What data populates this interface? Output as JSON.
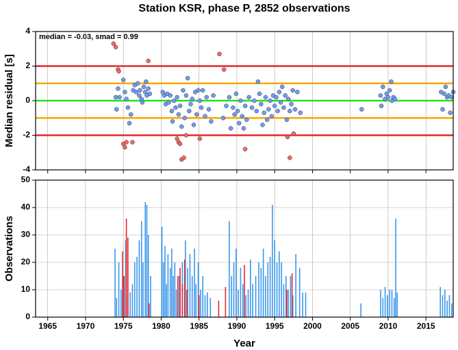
{
  "chart_data": [
    {
      "type": "scatter",
      "title": "Station KSR, phase P, 2852 observations",
      "ylabel": "Median residual [s]",
      "annotation": "median = -0.03, smad = 0.99",
      "xlim": [
        1963.4,
        2018.6
      ],
      "ylim": [
        -4,
        4
      ],
      "yticks": [
        -4,
        -2,
        0,
        2,
        4
      ],
      "grid": true,
      "hlines": [
        {
          "value": 2,
          "color": "#e8262a"
        },
        {
          "value": -2,
          "color": "#e8262a"
        },
        {
          "value": 1,
          "color": "#ffa500"
        },
        {
          "value": -1,
          "color": "#ffa500"
        },
        {
          "value": 0,
          "color": "#22e022"
        }
      ],
      "series": [
        {
          "color": "#6f9cf0",
          "x": [
            1974.0,
            1974.1,
            1974.3,
            1974.5,
            1975.0,
            1975.2,
            1975.4,
            1975.6,
            1975.8,
            1976.0,
            1976.3,
            1976.5,
            1976.7,
            1976.9,
            1977.1,
            1977.2,
            1977.4,
            1977.5,
            1977.7,
            1977.9,
            1978.0,
            1978.1,
            1978.3,
            1978.5,
            1980.2,
            1980.4,
            1980.6,
            1980.8,
            1981.0,
            1981.2,
            1981.4,
            1981.5,
            1981.7,
            1981.9,
            1982.1,
            1982.3,
            1982.5,
            1982.7,
            1982.9,
            1983.1,
            1983.3,
            1983.5,
            1983.7,
            1983.9,
            1984.1,
            1984.3,
            1984.5,
            1984.7,
            1984.9,
            1985.1,
            1985.3,
            1985.5,
            1985.8,
            1986.0,
            1986.3,
            1986.6,
            1986.9,
            1988.2,
            1988.6,
            1989.0,
            1989.2,
            1989.5,
            1989.7,
            1989.9,
            1990.1,
            1990.3,
            1990.5,
            1990.7,
            1990.9,
            1991.1,
            1991.3,
            1991.6,
            1992.0,
            1992.3,
            1992.6,
            1992.8,
            1993.0,
            1993.2,
            1993.4,
            1993.6,
            1993.8,
            1994.0,
            1994.2,
            1994.4,
            1994.6,
            1994.8,
            1995.0,
            1995.2,
            1995.4,
            1995.6,
            1995.8,
            1996.0,
            1996.2,
            1996.4,
            1996.6,
            1996.8,
            1997.0,
            1997.2,
            1997.4,
            1997.7,
            1998.0,
            1998.4,
            2006.5,
            2009.0,
            2009.1,
            2009.3,
            2009.6,
            2009.8,
            2010.0,
            2010.2,
            2010.4,
            2010.5,
            2010.7,
            2010.9,
            2017.0,
            2017.2,
            2017.4,
            2017.6,
            2017.8,
            2018.0,
            2018.2,
            2018.4,
            2018.6
          ],
          "values": [
            0.2,
            -0.5,
            0.7,
            0.2,
            1.2,
            0.5,
            0.1,
            -0.4,
            -1.3,
            -0.8,
            0.6,
            0.9,
            0.5,
            1.0,
            0.3,
            0.6,
            0.1,
            -0.1,
            0.8,
            0.5,
            1.1,
            0.3,
            0.7,
            0.4,
            0.5,
            0.3,
            -0.2,
            0.4,
            -0.1,
            0.3,
            -0.6,
            -1.2,
            0.0,
            -0.4,
            0.2,
            -0.8,
            -0.3,
            -1.5,
            0.6,
            -1.0,
            0.3,
            1.3,
            -0.6,
            -0.2,
            0.1,
            -1.4,
            0.5,
            -0.8,
            0.6,
            0.0,
            -0.4,
            0.6,
            -0.9,
            0.2,
            -0.5,
            -1.2,
            0.3,
            -1.0,
            -0.3,
            0.2,
            -1.6,
            -0.4,
            -0.8,
            0.4,
            -0.6,
            -1.3,
            0.0,
            -0.9,
            -1.6,
            -0.3,
            -1.1,
            0.2,
            -0.4,
            0.0,
            -0.6,
            1.1,
            0.4,
            -0.2,
            -1.4,
            -0.7,
            0.2,
            -1.1,
            -0.5,
            0.0,
            -0.9,
            0.3,
            -0.3,
            0.2,
            -0.6,
            0.5,
            -0.1,
            0.8,
            -0.4,
            0.3,
            -1.1,
            0.1,
            -0.6,
            -0.2,
            0.6,
            -0.5,
            0.5,
            -0.7,
            -0.5,
            0.3,
            -0.3,
            0.8,
            0.1,
            0.4,
            0.2,
            0.6,
            1.1,
            0.0,
            0.2,
            0.1,
            0.5,
            -0.5,
            0.4,
            0.8,
            0.2,
            0.3,
            -0.7,
            0.2,
            0.5
          ]
        },
        {
          "color": "#f06a5e",
          "x": [
            1973.7,
            1974.0,
            1974.3,
            1974.4,
            1975.0,
            1975.2,
            1975.4,
            1976.2,
            1978.3,
            1982.1,
            1982.3,
            1982.5,
            1982.7,
            1983.0,
            1983.3,
            1985.1,
            1987.7,
            1988.3,
            1991.1,
            1996.7,
            1997.0,
            1997.5
          ],
          "values": [
            3.3,
            3.1,
            1.8,
            1.7,
            -2.5,
            -2.7,
            -2.4,
            -2.4,
            2.3,
            -2.2,
            -2.4,
            -2.5,
            -3.4,
            -3.3,
            -2.0,
            -2.2,
            2.7,
            1.8,
            -2.8,
            -2.1,
            -3.3,
            -1.9
          ]
        }
      ]
    },
    {
      "type": "bar",
      "xlabel": "Year",
      "ylabel": "Observations",
      "xlim": [
        1963.4,
        2018.6
      ],
      "xticks": [
        1965,
        1970,
        1975,
        1980,
        1985,
        1990,
        1995,
        2000,
        2005,
        2010,
        2015
      ],
      "ylim": [
        0,
        50
      ],
      "yticks": [
        0,
        10,
        20,
        30,
        40,
        50
      ],
      "grid": true,
      "series": [
        {
          "color": "#3a97ec",
          "x": [
            1973.9,
            1974.1,
            1974.4,
            1974.7,
            1975.0,
            1975.3,
            1975.6,
            1975.9,
            1976.2,
            1976.5,
            1976.8,
            1977.1,
            1977.4,
            1977.6,
            1977.9,
            1978.1,
            1978.3,
            1978.6,
            1980.1,
            1980.3,
            1980.5,
            1980.7,
            1980.9,
            1981.2,
            1981.4,
            1981.6,
            1981.8,
            1982.0,
            1982.4,
            1982.8,
            1983.2,
            1983.5,
            1983.8,
            1984.1,
            1984.4,
            1984.6,
            1984.9,
            1985.2,
            1985.5,
            1985.8,
            1986.1,
            1986.5,
            1989.0,
            1989.3,
            1989.6,
            1989.9,
            1990.2,
            1990.5,
            1990.8,
            1991.2,
            1991.5,
            1991.8,
            1992.1,
            1992.5,
            1992.9,
            1993.2,
            1993.5,
            1993.8,
            1994.1,
            1994.4,
            1994.7,
            1995.0,
            1995.3,
            1995.6,
            1995.9,
            1996.2,
            1996.5,
            1996.8,
            1997.1,
            1997.4,
            1997.8,
            1998.3,
            1998.7,
            1999.1,
            2006.4,
            2009.0,
            2009.3,
            2009.6,
            2009.9,
            2010.2,
            2010.5,
            2010.8,
            2011.0,
            2011.2,
            2016.9,
            2017.2,
            2017.5,
            2017.8,
            2018.1,
            2018.4
          ],
          "values": [
            25,
            7,
            20,
            10,
            15,
            28,
            20,
            9,
            12,
            20,
            22,
            28,
            35,
            20,
            42,
            41,
            30,
            15,
            33,
            20,
            26,
            12,
            23,
            18,
            25,
            15,
            20,
            10,
            15,
            20,
            28,
            18,
            23,
            15,
            25,
            12,
            20,
            10,
            15,
            8,
            9,
            7,
            35,
            15,
            20,
            25,
            10,
            18,
            12,
            8,
            10,
            21,
            12,
            15,
            20,
            18,
            25,
            15,
            20,
            22,
            41,
            28,
            20,
            24,
            20,
            12,
            15,
            10,
            15,
            8,
            23,
            18,
            9,
            9,
            5,
            10,
            7,
            11,
            8,
            10,
            10,
            7,
            36,
            9,
            11,
            8,
            10,
            6,
            8,
            5
          ]
        },
        {
          "color": "#e8262a",
          "x": [
            1974.9,
            1975.1,
            1975.4,
            1975.6,
            1978.4,
            1982.2,
            1982.5,
            1982.8,
            1983.1,
            1983.4,
            1985.0,
            1987.6,
            1988.5,
            1991.0,
            1996.6,
            1997.3
          ],
          "values": [
            24,
            15,
            36,
            29,
            5,
            15,
            18,
            12,
            21,
            10,
            8,
            6,
            11,
            19,
            10,
            16
          ]
        }
      ]
    }
  ]
}
